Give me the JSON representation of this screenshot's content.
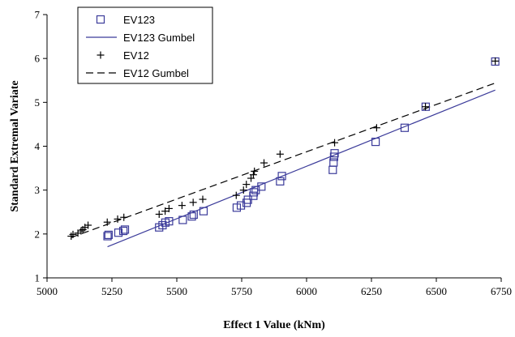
{
  "chart_data": {
    "type": "scatter",
    "xlabel": "Effect 1 Value (kNm)",
    "ylabel": "Standard Extremal Variate",
    "xlim": [
      5000,
      6750
    ],
    "ylim": [
      1,
      7
    ],
    "x_ticks": [
      "5000",
      "5250",
      "5500",
      "5750",
      "6000",
      "6250",
      "6500",
      "6750"
    ],
    "y_ticks": [
      "1",
      "2",
      "3",
      "4",
      "5",
      "6",
      "7"
    ],
    "grid": false,
    "legend_position": "top-left",
    "colors": {
      "ev123": "#3b3b9a",
      "ev12": "#000000"
    },
    "series": [
      {
        "name": "EV123",
        "kind": "points",
        "marker": "square",
        "color": "#3b3b9a",
        "points": [
          [
            5233,
            1.95
          ],
          [
            5237,
            1.98
          ],
          [
            5275,
            2.03
          ],
          [
            5294,
            2.07
          ],
          [
            5300,
            2.1
          ],
          [
            5432,
            2.15
          ],
          [
            5445,
            2.2
          ],
          [
            5456,
            2.26
          ],
          [
            5470,
            2.29
          ],
          [
            5523,
            2.32
          ],
          [
            5558,
            2.4
          ],
          [
            5565,
            2.44
          ],
          [
            5603,
            2.52
          ],
          [
            5731,
            2.6
          ],
          [
            5747,
            2.65
          ],
          [
            5769,
            2.71
          ],
          [
            5774,
            2.78
          ],
          [
            5795,
            2.87
          ],
          [
            5797,
            2.95
          ],
          [
            5804,
            3.0
          ],
          [
            5826,
            3.08
          ],
          [
            5898,
            3.2
          ],
          [
            5905,
            3.32
          ],
          [
            6101,
            3.46
          ],
          [
            6104,
            3.63
          ],
          [
            6106,
            3.76
          ],
          [
            6108,
            3.84
          ],
          [
            6266,
            4.1
          ],
          [
            6378,
            4.42
          ],
          [
            6459,
            4.9
          ],
          [
            6727,
            5.93
          ]
        ]
      },
      {
        "name": "EV123 Gumbel",
        "kind": "line",
        "dash": "solid",
        "color": "#3b3b9a",
        "x": [
          5233,
          6727
        ],
        "y": [
          1.71,
          5.28
        ]
      },
      {
        "name": "EV12",
        "kind": "points",
        "marker": "plus",
        "color": "#000000",
        "points": [
          [
            5093,
            1.95
          ],
          [
            5100,
            1.99
          ],
          [
            5119,
            2.02
          ],
          [
            5131,
            2.07
          ],
          [
            5138,
            2.1
          ],
          [
            5146,
            2.15
          ],
          [
            5158,
            2.2
          ],
          [
            5232,
            2.27
          ],
          [
            5272,
            2.34
          ],
          [
            5296,
            2.38
          ],
          [
            5432,
            2.45
          ],
          [
            5455,
            2.52
          ],
          [
            5470,
            2.58
          ],
          [
            5520,
            2.65
          ],
          [
            5563,
            2.72
          ],
          [
            5600,
            2.79
          ],
          [
            5729,
            2.88
          ],
          [
            5757,
            3.0
          ],
          [
            5768,
            3.13
          ],
          [
            5786,
            3.27
          ],
          [
            5795,
            3.35
          ],
          [
            5799,
            3.43
          ],
          [
            5836,
            3.62
          ],
          [
            5898,
            3.82
          ],
          [
            6108,
            4.08
          ],
          [
            6270,
            4.42
          ],
          [
            6458,
            4.9
          ],
          [
            6727,
            5.94
          ]
        ]
      },
      {
        "name": "EV12 Gumbel",
        "kind": "line",
        "dash": "dashed",
        "color": "#000000",
        "x": [
          5093,
          6727
        ],
        "y": [
          1.92,
          5.44
        ]
      }
    ]
  }
}
